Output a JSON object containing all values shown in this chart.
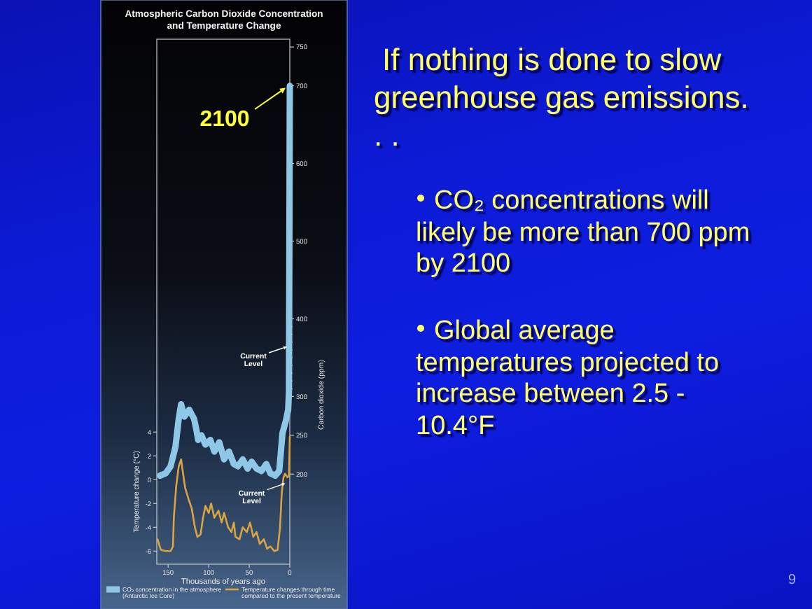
{
  "chart_data": {
    "type": "line",
    "title": "Atmospheric Carbon Dioxide Concentration and Temperature Change",
    "xlabel": "Thousands of years ago",
    "ylabel": "Carbon dioxide (ppm)",
    "y2label": "Temperature change (°C)",
    "xlim": [
      164,
      0
    ],
    "xticks": [
      150,
      100,
      50,
      0
    ],
    "ylim": [
      84,
      760
    ],
    "yticks": [
      200,
      250,
      300,
      {
        "value": 310,
        "label": null
      },
      {
        "value": 320,
        "label": null
      },
      {
        "value": 330,
        "label": null
      },
      {
        "value": 340,
        "label": null
      },
      {
        "value": 350,
        "label": null
      },
      {
        "value": 360,
        "label": null
      },
      {
        "value": 370,
        "label": null
      },
      {
        "value": 380,
        "label": null
      },
      {
        "value": 390,
        "label": null
      },
      400,
      500,
      600,
      700,
      750
    ],
    "y2lim": [
      -7.1,
      37
    ],
    "y2ticks": [
      -6,
      -4,
      -2,
      0,
      2,
      4
    ],
    "legend": "bottom",
    "series": [
      {
        "name": "CO₂ concentration in the atmosphere (Antarctic Ice Core)",
        "color": "#8ec8e6",
        "x": [
          160,
          153,
          147,
          141,
          137,
          134,
          130,
          124,
          118,
          115,
          113,
          109,
          104,
          98,
          93,
          87,
          81,
          75,
          69,
          64,
          58,
          52,
          47,
          41,
          35,
          29,
          24,
          18,
          13,
          9,
          5,
          2,
          1,
          0
        ],
        "values": [
          198,
          201,
          210,
          235,
          271,
          290,
          274,
          283,
          271,
          256,
          244,
          250,
          238,
          244,
          229,
          241,
          219,
          229,
          213,
          210,
          219,
          207,
          216,
          207,
          204,
          213,
          201,
          198,
          204,
          253,
          268,
          283,
          307,
          700
        ]
      },
      {
        "name": "Temperature changes through time compared to the present temperature",
        "color": "#d9a441",
        "axis": "y2",
        "x": [
          163,
          159,
          153,
          147,
          144,
          143,
          140,
          137,
          134,
          132,
          129,
          125,
          121,
          117,
          114,
          110,
          107,
          104,
          100,
          97,
          93,
          88,
          84,
          81,
          76,
          72,
          69,
          67,
          62,
          58,
          53,
          49,
          45,
          41,
          37,
          32,
          28,
          24,
          19,
          15,
          12,
          10,
          8,
          6,
          3,
          1,
          0
        ],
        "values": [
          -5,
          -5.9,
          -6,
          -6,
          -5.6,
          -3.2,
          -0.5,
          1.1,
          1.7,
          0.7,
          -0.7,
          -1.6,
          -2.4,
          -4,
          -4.8,
          -4.6,
          -3.2,
          -2.2,
          -2.8,
          -2,
          -3.2,
          -2.6,
          -3.6,
          -2.8,
          -4,
          -4.4,
          -3.6,
          -4.8,
          -5,
          -4,
          -4.4,
          -3.6,
          -4.8,
          -4.4,
          -5.4,
          -5,
          -5.8,
          -5.6,
          -6,
          -5.9,
          -4,
          -1.2,
          0.1,
          0.5,
          0.2,
          0.3,
          3.6
        ]
      }
    ],
    "annotations": [
      "2100",
      "Current Level",
      "Current Level",
      "If nothing is done to slow greenhouse gas emissions. . .",
      "CO₂ concentrations will likely be more than 700 ppm by 2100",
      "Global average temperatures projected to increase between 2.5 - 10.4°F",
      "9"
    ]
  }
}
